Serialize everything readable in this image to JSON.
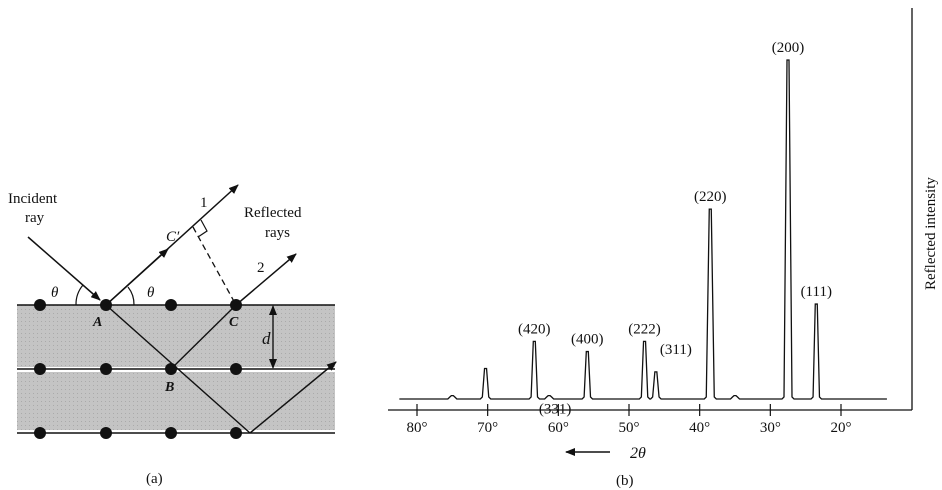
{
  "panel_a": {
    "incident_label": [
      "Incident",
      "ray"
    ],
    "reflected_label": [
      "Reflected",
      "rays"
    ],
    "ray1_label": "1",
    "ray2_label": "2",
    "theta": "θ",
    "point_a": "A",
    "point_b": "B",
    "point_c": "C",
    "point_c_prime": "C′",
    "spacing_label": "d",
    "caption": "(a)"
  },
  "panel_b": {
    "ylabel": "Reflected intensity",
    "xlabel": "2θ",
    "caption": "(b)",
    "chart_data": {
      "type": "line",
      "xlabel": "2θ",
      "ylabel": "Reflected intensity",
      "x_axis_reversed": true,
      "xlim": [
        85,
        15
      ],
      "x_ticks": [
        "80°",
        "70°",
        "60°",
        "50°",
        "40°",
        "30°",
        "20°"
      ],
      "x_tick_values": [
        80,
        70,
        60,
        50,
        40,
        30,
        20
      ],
      "peaks": [
        {
          "label": "(111)",
          "two_theta": 23.5,
          "intensity": 0.28
        },
        {
          "label": "(200)",
          "two_theta": 27.5,
          "intensity": 1.0
        },
        {
          "label": "",
          "two_theta": 35.0,
          "intensity": 0.01
        },
        {
          "label": "(220)",
          "two_theta": 38.5,
          "intensity": 0.56
        },
        {
          "label": "(311)",
          "two_theta": 46.2,
          "intensity": 0.08
        },
        {
          "label": "(222)",
          "two_theta": 47.8,
          "intensity": 0.17
        },
        {
          "label": "(400)",
          "two_theta": 55.9,
          "intensity": 0.14
        },
        {
          "label": "(331)",
          "two_theta": 61.3,
          "intensity": 0.01
        },
        {
          "label": "(420)",
          "two_theta": 63.4,
          "intensity": 0.17
        },
        {
          "label": "",
          "two_theta": 70.3,
          "intensity": 0.09
        },
        {
          "label": "",
          "two_theta": 75.0,
          "intensity": 0.01
        }
      ]
    }
  }
}
